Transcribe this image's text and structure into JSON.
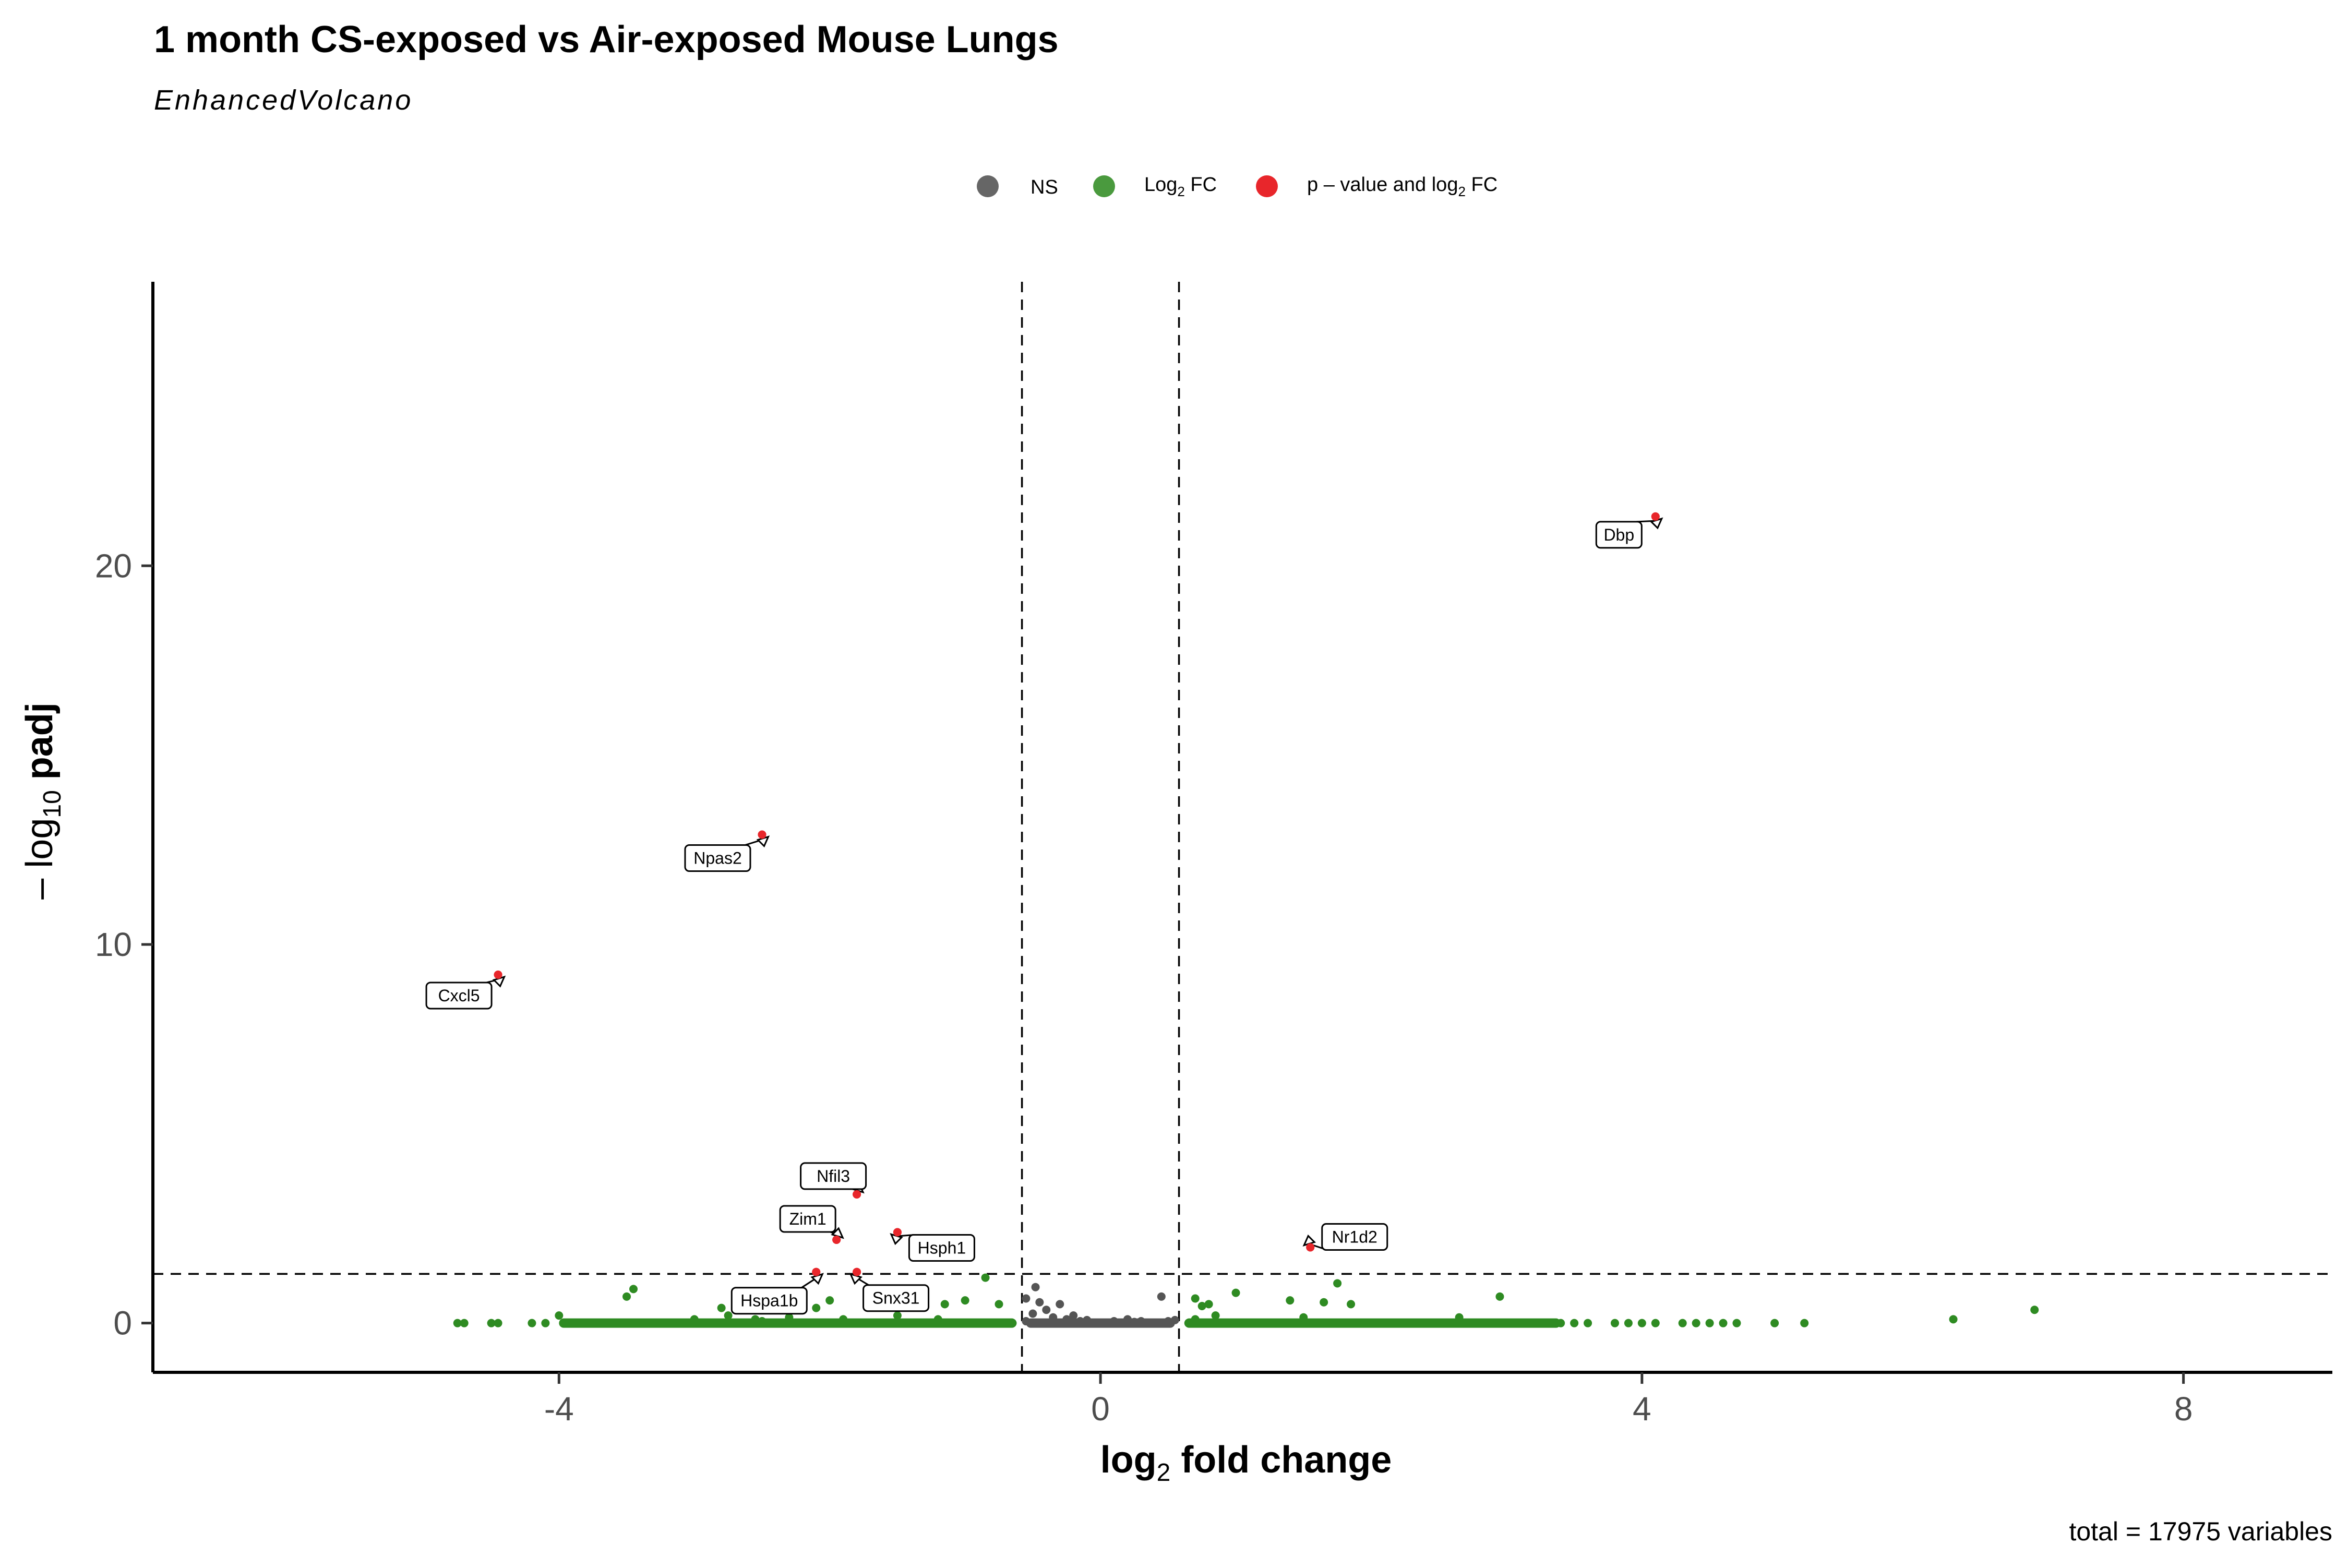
{
  "title": "1 month CS-exposed vs Air-exposed Mouse Lungs",
  "subtitle": "EnhancedVolcano",
  "caption": "total = 17975 variables",
  "legend": [
    {
      "key": "ns",
      "label": "NS",
      "color": "#666666"
    },
    {
      "key": "fc",
      "label": "Log",
      "sub": "2",
      "suffix": " FC",
      "color": "#4a9a3e"
    },
    {
      "key": "both",
      "label": "p – value and log",
      "sub": "2",
      "suffix": " FC",
      "color": "#e8262b"
    }
  ],
  "axes": {
    "x": {
      "label_main": "log",
      "label_sub": "2",
      "label_rest": " fold change",
      "ticks": [
        "-4",
        "0",
        "4",
        "8"
      ]
    },
    "y": {
      "label_prefix": "– log",
      "label_sub": "10",
      "label_rest": " padj",
      "ticks": [
        "0",
        "10",
        "20"
      ]
    }
  },
  "chart_data": {
    "type": "scatter",
    "xlabel": "log2 fold change",
    "ylabel": "– log10 padj",
    "xlim": [
      -7,
      9.1
    ],
    "ylim": [
      -1.3,
      27.5
    ],
    "grid": false,
    "legend_position": "top",
    "cutoffs": {
      "log2fc": [
        -0.58,
        0.58
      ],
      "neg_log10_padj": 1.3
    },
    "labeled_genes": [
      {
        "name": "Dbp",
        "x": 4.1,
        "y": 21.3
      },
      {
        "name": "Npas2",
        "x": -2.5,
        "y": 12.9
      },
      {
        "name": "Cxcl5",
        "x": -4.45,
        "y": 9.2
      },
      {
        "name": "Nfil3",
        "x": -1.8,
        "y": 3.4
      },
      {
        "name": "Zim1",
        "x": -1.95,
        "y": 2.2
      },
      {
        "name": "Hsph1",
        "x": -1.5,
        "y": 2.4
      },
      {
        "name": "Nr1d2",
        "x": 1.55,
        "y": 2.0
      },
      {
        "name": "Snx31",
        "x": -1.8,
        "y": 1.35
      },
      {
        "name": "Hspa1b",
        "x": -2.1,
        "y": 1.35
      }
    ],
    "series": [
      {
        "name": "NS",
        "color": "#666666",
        "points": [
          [
            -0.55,
            0.05
          ],
          [
            -0.5,
            0.25
          ],
          [
            -0.45,
            0.55
          ],
          [
            -0.4,
            0.35
          ],
          [
            -0.35,
            0.15
          ],
          [
            -0.3,
            0.5
          ],
          [
            -0.25,
            0.1
          ],
          [
            -0.2,
            0.2
          ],
          [
            -0.15,
            0.05
          ],
          [
            -0.1,
            0.08
          ],
          [
            0.1,
            0.05
          ],
          [
            0.2,
            0.1
          ],
          [
            0.25,
            0.03
          ],
          [
            0.3,
            0.05
          ],
          [
            0.45,
            0.7
          ],
          [
            0.5,
            0.05
          ],
          [
            -0.48,
            0.95
          ],
          [
            -0.55,
            0.65
          ],
          [
            0.55,
            0.08
          ]
        ]
      },
      {
        "name": "Log2 FC",
        "color": "#4a9a3e",
        "points": [
          [
            -4.75,
            0
          ],
          [
            -4.7,
            0
          ],
          [
            -4.5,
            0
          ],
          [
            -4.45,
            0
          ],
          [
            -4.2,
            0
          ],
          [
            -4.1,
            0
          ],
          [
            -4.0,
            0.2
          ],
          [
            -3.9,
            0
          ],
          [
            -3.8,
            0
          ],
          [
            -3.7,
            0
          ],
          [
            -3.6,
            0
          ],
          [
            -3.5,
            0
          ],
          [
            -3.45,
            0.9
          ],
          [
            -3.5,
            0.7
          ],
          [
            -3.3,
            0
          ],
          [
            -3.2,
            0
          ],
          [
            -3.1,
            0
          ],
          [
            -3.0,
            0.1
          ],
          [
            -2.95,
            0
          ],
          [
            -2.9,
            0
          ],
          [
            -2.85,
            0
          ],
          [
            -2.8,
            0.4
          ],
          [
            -2.75,
            0.2
          ],
          [
            -2.6,
            0
          ],
          [
            -2.55,
            0.1
          ],
          [
            -2.5,
            0.05
          ],
          [
            -2.45,
            0
          ],
          [
            -2.4,
            0
          ],
          [
            -2.3,
            0.15
          ],
          [
            -2.25,
            0
          ],
          [
            -2.2,
            0
          ],
          [
            -2.15,
            0
          ],
          [
            -2.1,
            0.4
          ],
          [
            -2.05,
            0
          ],
          [
            -2.0,
            0.6
          ],
          [
            -1.9,
            0.1
          ],
          [
            -1.8,
            0
          ],
          [
            -1.7,
            0
          ],
          [
            -1.6,
            0
          ],
          [
            -1.5,
            0.2
          ],
          [
            -1.45,
            0.6
          ],
          [
            -1.4,
            0
          ],
          [
            -1.3,
            0
          ],
          [
            -1.25,
            0
          ],
          [
            -1.2,
            0.1
          ],
          [
            -1.15,
            0.5
          ],
          [
            -1.1,
            0
          ],
          [
            -1.0,
            0.6
          ],
          [
            -0.95,
            0
          ],
          [
            -0.9,
            0
          ],
          [
            -0.85,
            1.2
          ],
          [
            -0.8,
            0
          ],
          [
            -0.75,
            0.5
          ],
          [
            -0.7,
            0
          ],
          [
            -0.65,
            0
          ],
          [
            0.65,
            0
          ],
          [
            0.7,
            0.1
          ],
          [
            0.7,
            0.65
          ],
          [
            0.75,
            0.45
          ],
          [
            0.8,
            0.5
          ],
          [
            0.85,
            0.2
          ],
          [
            0.9,
            0
          ],
          [
            1.0,
            0.8
          ],
          [
            1.1,
            0
          ],
          [
            1.2,
            0
          ],
          [
            1.3,
            0
          ],
          [
            1.4,
            0.6
          ],
          [
            1.5,
            0.15
          ],
          [
            1.6,
            0
          ],
          [
            1.65,
            0.55
          ],
          [
            1.75,
            1.05
          ],
          [
            1.8,
            0
          ],
          [
            1.9,
            0
          ],
          [
            1.85,
            0.5
          ],
          [
            2.0,
            0
          ],
          [
            2.2,
            0
          ],
          [
            2.4,
            0
          ],
          [
            2.6,
            0
          ],
          [
            2.65,
            0.15
          ],
          [
            2.8,
            0
          ],
          [
            2.95,
            0.7
          ],
          [
            3.0,
            0
          ],
          [
            3.2,
            0
          ],
          [
            3.4,
            0
          ],
          [
            3.5,
            0
          ],
          [
            3.6,
            0
          ],
          [
            3.8,
            0
          ],
          [
            3.9,
            0
          ],
          [
            4.0,
            0
          ],
          [
            4.1,
            0
          ],
          [
            4.3,
            0
          ],
          [
            4.4,
            0
          ],
          [
            4.5,
            0
          ],
          [
            4.6,
            0
          ],
          [
            4.7,
            0
          ],
          [
            4.98,
            0
          ],
          [
            5.2,
            0
          ],
          [
            6.3,
            0.1
          ],
          [
            6.9,
            0.35
          ]
        ]
      },
      {
        "name": "p – value and log2 FC",
        "color": "#e8262b",
        "points": [
          [
            4.1,
            21.3
          ],
          [
            -2.5,
            12.9
          ],
          [
            -4.45,
            9.2
          ],
          [
            -1.8,
            3.4
          ],
          [
            -1.95,
            2.2
          ],
          [
            -1.5,
            2.4
          ],
          [
            1.55,
            2.0
          ],
          [
            -1.8,
            1.35
          ],
          [
            -2.1,
            1.35
          ]
        ]
      }
    ]
  }
}
